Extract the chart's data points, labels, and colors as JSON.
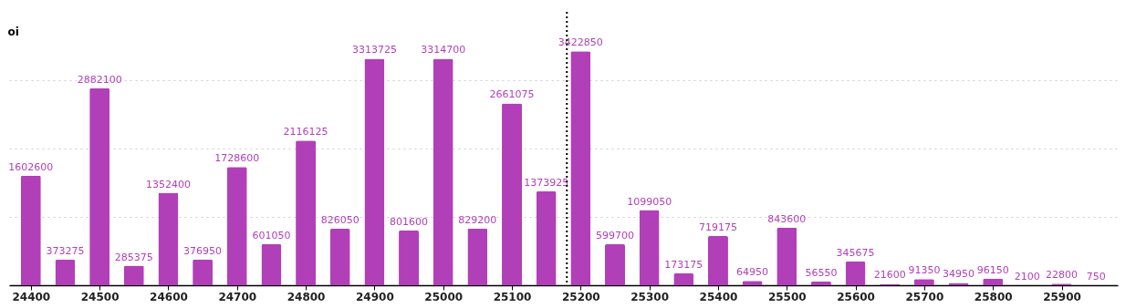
{
  "chart_data": {
    "type": "bar",
    "ylabel": "oi",
    "x": [
      24400,
      24450,
      24500,
      24550,
      24600,
      24650,
      24700,
      24750,
      24800,
      24850,
      24900,
      24950,
      25000,
      25050,
      25100,
      25150,
      25200,
      25250,
      25300,
      25350,
      25400,
      25450,
      25500,
      25550,
      25600,
      25650,
      25700,
      25750,
      25800,
      25850,
      25900,
      25950
    ],
    "values": [
      1602600,
      373275,
      2882100,
      285375,
      1352400,
      376950,
      1728600,
      601050,
      2116125,
      826050,
      3313725,
      801600,
      3314700,
      829200,
      2661075,
      1373925,
      3422850,
      599700,
      1099050,
      173175,
      719175,
      64950,
      843600,
      56550,
      345675,
      21600,
      91350,
      34950,
      96150,
      2100,
      22800,
      750
    ],
    "color": "#b13fb8",
    "xlim": [
      24375,
      25975
    ],
    "xticks": [
      24400,
      24500,
      24600,
      24700,
      24800,
      24900,
      25000,
      25100,
      25200,
      25300,
      25400,
      25500,
      25600,
      25700,
      25800,
      25900
    ],
    "ylim": [
      0,
      4000000
    ],
    "yticks": [
      {
        "value": 1000000,
        "label": null
      },
      {
        "value": 2000000,
        "label": null
      },
      {
        "value": 3000000,
        "label": null
      }
    ],
    "tick_labels": "x",
    "grid": "y",
    "data_labels": true,
    "ref_lines": [
      {
        "axis": "x",
        "value": 25180,
        "label": null,
        "line_style": "dotted",
        "color": "#000000"
      }
    ]
  }
}
